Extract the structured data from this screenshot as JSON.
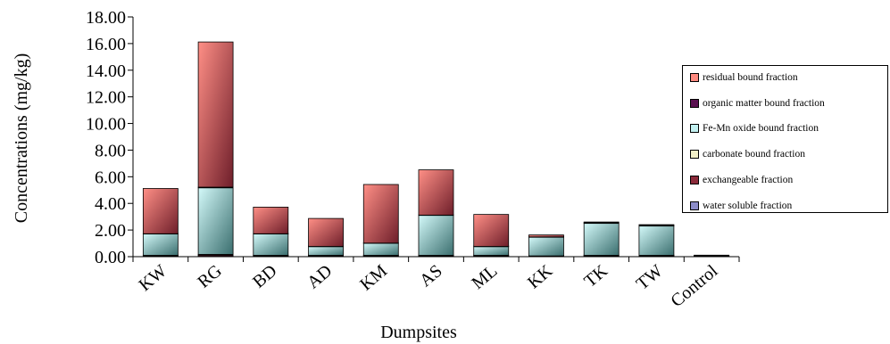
{
  "chart_data": {
    "type": "bar",
    "stacked": true,
    "title": "",
    "xlabel": "Dumpsites",
    "ylabel": "Concentrations (mg/kg)",
    "ylim": [
      0,
      18
    ],
    "yticks": [
      "0.00",
      "2.00",
      "4.00",
      "6.00",
      "8.00",
      "10.00",
      "12.00",
      "14.00",
      "16.00",
      "18.00"
    ],
    "grid": false,
    "legend_position": "right",
    "categories": [
      "KW",
      "RG",
      "BD",
      "AD",
      "KM",
      "AS",
      "ML",
      "KK",
      "TK",
      "TW",
      "Control"
    ],
    "series": [
      {
        "name": "water soluble fraction",
        "color": "#8c8cc8",
        "values": [
          0.02,
          0.02,
          0.02,
          0.02,
          0.02,
          0.02,
          0.02,
          0.02,
          0.02,
          0.02,
          0.01
        ]
      },
      {
        "name": "exchangeable fraction",
        "color": "#8b2a3a",
        "values": [
          0.05,
          0.1,
          0.05,
          0.05,
          0.05,
          0.05,
          0.05,
          0.02,
          0.05,
          0.05,
          0.02
        ]
      },
      {
        "name": "carbonate bound fraction",
        "color": "#f2f0c8",
        "values": [
          0.03,
          0.05,
          0.03,
          0.03,
          0.03,
          0.03,
          0.03,
          0.02,
          0.03,
          0.03,
          0.01
        ]
      },
      {
        "name": "Fe-Mn oxide bound fraction",
        "color": "#c2f0f0",
        "values": [
          1.6,
          5.0,
          1.6,
          0.65,
          0.9,
          3.0,
          0.65,
          1.4,
          2.4,
          2.2,
          0.02
        ]
      },
      {
        "name": "organic matter bound fraction",
        "color": "#5a1050",
        "values": [
          0.02,
          0.05,
          0.02,
          0.02,
          0.02,
          0.02,
          0.02,
          0.02,
          0.05,
          0.05,
          0.0
        ]
      },
      {
        "name": "residual bound fraction",
        "color": "#ff8a80",
        "values": [
          3.4,
          10.9,
          2.0,
          2.1,
          4.4,
          3.4,
          2.4,
          0.15,
          0.05,
          0.05,
          0.02
        ]
      }
    ]
  }
}
